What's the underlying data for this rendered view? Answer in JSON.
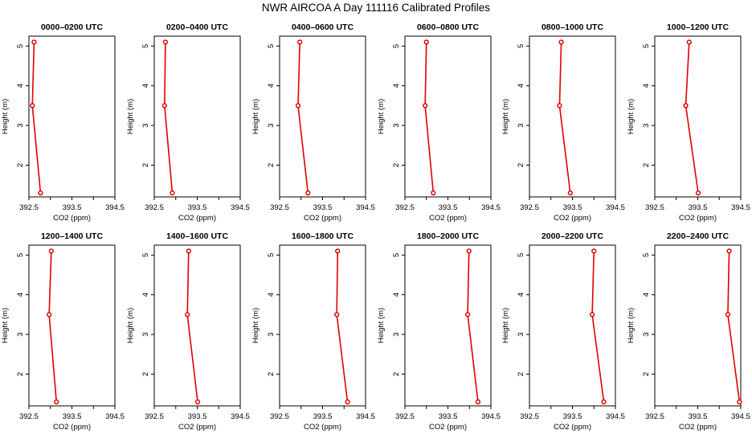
{
  "title": "NWR AIRCOA A  Day 111116  Calibrated Profiles",
  "chart_data": [
    {
      "type": "line",
      "title": "0000–0200 UTC",
      "xlabel": "CO2 (ppm)",
      "ylabel": "Height (m)",
      "xlim": [
        392.5,
        394.5
      ],
      "ylim": [
        1.2,
        5.25
      ],
      "xticks": [
        "392.5",
        "393.5",
        "394.5"
      ],
      "yticks": [
        "2",
        "3",
        "4",
        "5"
      ],
      "x": [
        392.62,
        392.58,
        392.77
      ],
      "y": [
        5.1,
        3.5,
        1.3
      ],
      "color": "#e00000"
    },
    {
      "type": "line",
      "title": "0200–0400 UTC",
      "xlabel": "CO2 (ppm)",
      "ylabel": "Height (m)",
      "xlim": [
        392.5,
        394.5
      ],
      "ylim": [
        1.2,
        5.25
      ],
      "xticks": [
        "392.5",
        "393.5",
        "394.5"
      ],
      "yticks": [
        "2",
        "3",
        "4",
        "5"
      ],
      "x": [
        392.76,
        392.74,
        392.92
      ],
      "y": [
        5.1,
        3.5,
        1.3
      ],
      "color": "#e00000"
    },
    {
      "type": "line",
      "title": "0400–0600 UTC",
      "xlabel": "CO2 (ppm)",
      "ylabel": "Height (m)",
      "xlim": [
        392.5,
        394.5
      ],
      "ylim": [
        1.2,
        5.25
      ],
      "xticks": [
        "392.5",
        "393.5",
        "394.5"
      ],
      "yticks": [
        "2",
        "3",
        "4",
        "5"
      ],
      "x": [
        392.97,
        392.93,
        393.16
      ],
      "y": [
        5.1,
        3.5,
        1.3
      ],
      "color": "#e00000"
    },
    {
      "type": "line",
      "title": "0600–0800 UTC",
      "xlabel": "CO2 (ppm)",
      "ylabel": "Height (m)",
      "xlim": [
        392.5,
        394.5
      ],
      "ylim": [
        1.2,
        5.25
      ],
      "xticks": [
        "392.5",
        "393.5",
        "394.5"
      ],
      "yticks": [
        "2",
        "3",
        "4",
        "5"
      ],
      "x": [
        393.0,
        392.97,
        393.16
      ],
      "y": [
        5.1,
        3.5,
        1.3
      ],
      "color": "#e00000"
    },
    {
      "type": "line",
      "title": "0800–1000 UTC",
      "xlabel": "CO2 (ppm)",
      "ylabel": "Height (m)",
      "xlim": [
        392.5,
        394.5
      ],
      "ylim": [
        1.2,
        5.25
      ],
      "xticks": [
        "392.5",
        "393.5",
        "394.5"
      ],
      "yticks": [
        "2",
        "3",
        "4",
        "5"
      ],
      "x": [
        393.24,
        393.2,
        393.45
      ],
      "y": [
        5.1,
        3.5,
        1.3
      ],
      "color": "#e00000"
    },
    {
      "type": "line",
      "title": "1000–1200 UTC",
      "xlabel": "CO2 (ppm)",
      "ylabel": "Height (m)",
      "xlim": [
        392.5,
        394.5
      ],
      "ylim": [
        1.2,
        5.25
      ],
      "xticks": [
        "392.5",
        "393.5",
        "394.5"
      ],
      "yticks": [
        "2",
        "3",
        "4",
        "5"
      ],
      "x": [
        393.3,
        393.22,
        393.51
      ],
      "y": [
        5.1,
        3.5,
        1.3
      ],
      "color": "#e00000"
    },
    {
      "type": "line",
      "title": "1200–1400 UTC",
      "xlabel": "CO2 (ppm)",
      "ylabel": "Height (m)",
      "xlim": [
        392.5,
        394.5
      ],
      "ylim": [
        1.2,
        5.25
      ],
      "xticks": [
        "392.5",
        "393.5",
        "394.5"
      ],
      "yticks": [
        "2",
        "3",
        "4",
        "5"
      ],
      "x": [
        393.02,
        392.97,
        393.14
      ],
      "y": [
        5.1,
        3.5,
        1.3
      ],
      "color": "#e00000"
    },
    {
      "type": "line",
      "title": "1400–1600 UTC",
      "xlabel": "CO2 (ppm)",
      "ylabel": "Height (m)",
      "xlim": [
        392.5,
        394.5
      ],
      "ylim": [
        1.2,
        5.25
      ],
      "xticks": [
        "392.5",
        "393.5",
        "394.5"
      ],
      "yticks": [
        "2",
        "3",
        "4",
        "5"
      ],
      "x": [
        393.3,
        393.27,
        393.51
      ],
      "y": [
        5.1,
        3.5,
        1.3
      ],
      "color": "#e00000"
    },
    {
      "type": "line",
      "title": "1600–1800 UTC",
      "xlabel": "CO2 (ppm)",
      "ylabel": "Height (m)",
      "xlim": [
        392.5,
        394.5
      ],
      "ylim": [
        1.2,
        5.25
      ],
      "xticks": [
        "392.5",
        "393.5",
        "394.5"
      ],
      "yticks": [
        "2",
        "3",
        "4",
        "5"
      ],
      "x": [
        393.85,
        393.83,
        394.08
      ],
      "y": [
        5.1,
        3.5,
        1.3
      ],
      "color": "#e00000"
    },
    {
      "type": "line",
      "title": "1800–2000 UTC",
      "xlabel": "CO2 (ppm)",
      "ylabel": "Height (m)",
      "xlim": [
        392.5,
        394.5
      ],
      "ylim": [
        1.2,
        5.25
      ],
      "xticks": [
        "392.5",
        "393.5",
        "394.5"
      ],
      "yticks": [
        "2",
        "3",
        "4",
        "5"
      ],
      "x": [
        393.99,
        393.96,
        394.2
      ],
      "y": [
        5.1,
        3.5,
        1.3
      ],
      "color": "#e00000"
    },
    {
      "type": "line",
      "title": "2000–2200 UTC",
      "xlabel": "CO2 (ppm)",
      "ylabel": "Height (m)",
      "xlim": [
        392.5,
        394.5
      ],
      "ylim": [
        1.2,
        5.25
      ],
      "xticks": [
        "392.5",
        "393.5",
        "394.5"
      ],
      "yticks": [
        "2",
        "3",
        "4",
        "5"
      ],
      "x": [
        394.0,
        393.96,
        394.23
      ],
      "y": [
        5.1,
        3.5,
        1.3
      ],
      "color": "#e00000"
    },
    {
      "type": "line",
      "title": "2200–2400 UTC",
      "xlabel": "CO2 (ppm)",
      "ylabel": "Height (m)",
      "xlim": [
        392.5,
        394.5
      ],
      "ylim": [
        1.2,
        5.25
      ],
      "xticks": [
        "392.5",
        "393.5",
        "394.5"
      ],
      "yticks": [
        "2",
        "3",
        "4",
        "5"
      ],
      "x": [
        394.23,
        394.2,
        394.47
      ],
      "y": [
        5.1,
        3.5,
        1.3
      ],
      "color": "#e00000"
    }
  ]
}
